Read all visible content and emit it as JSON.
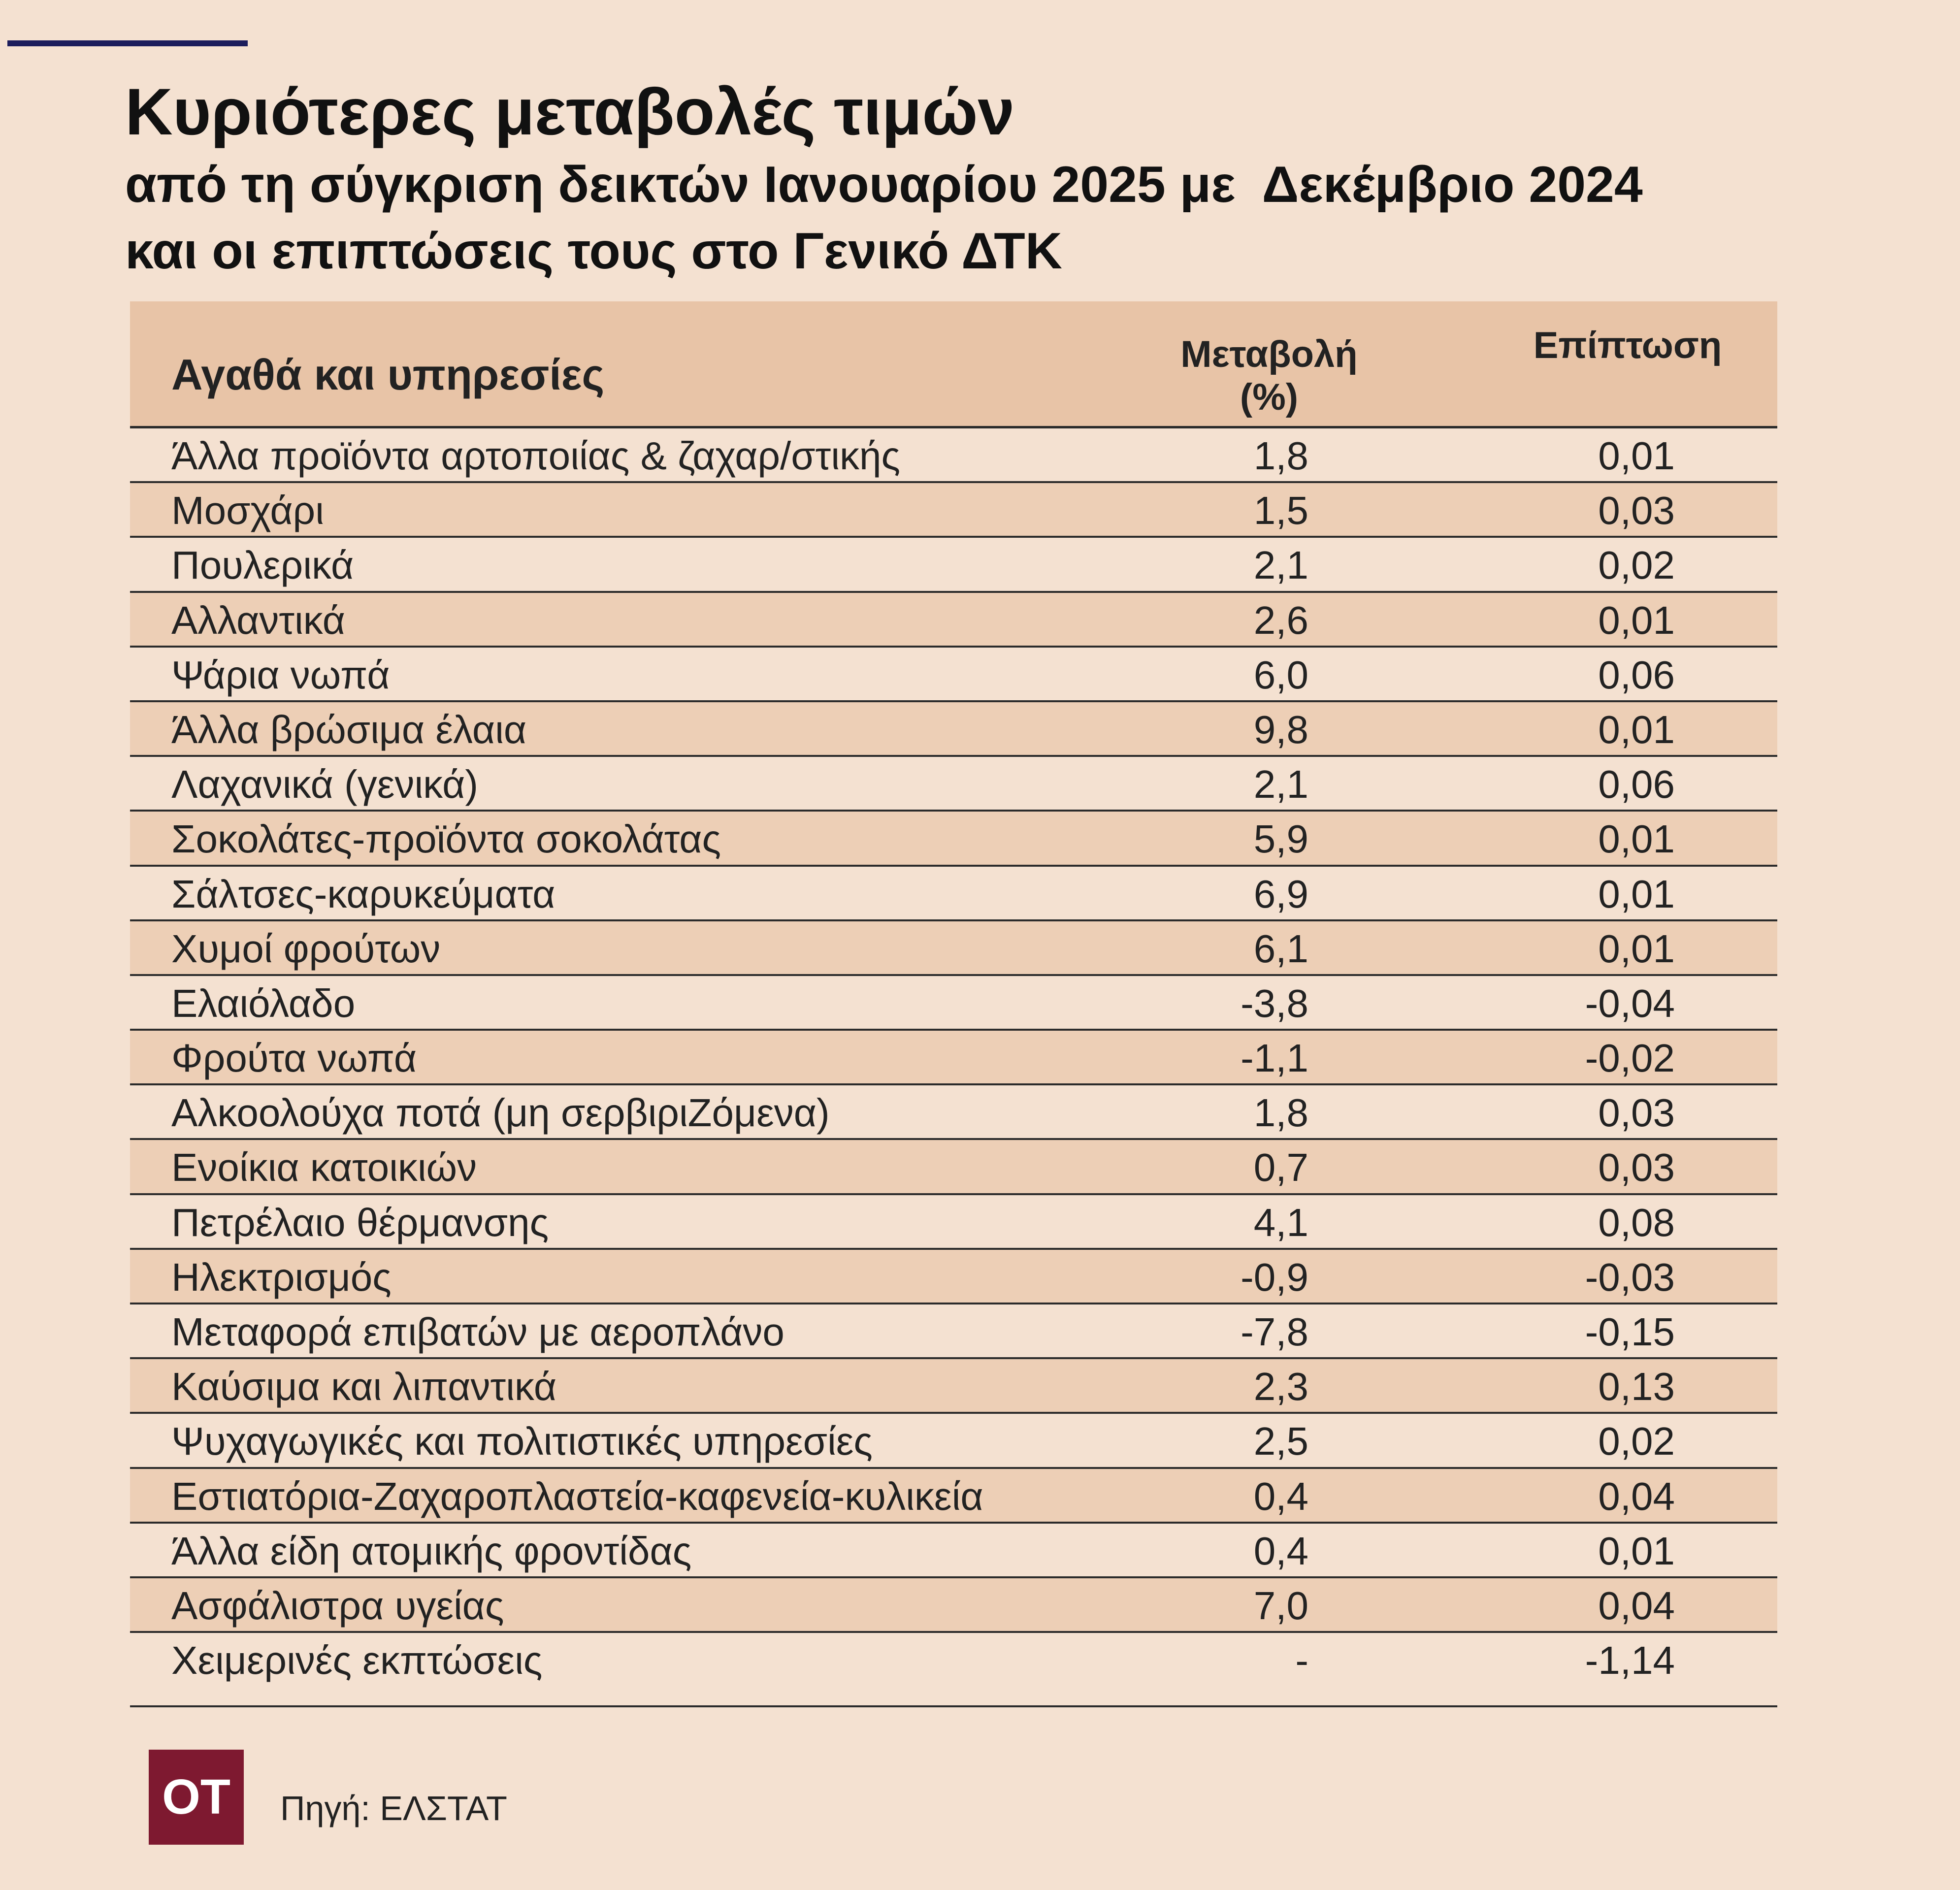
{
  "colors": {
    "background": "#f4e1d1",
    "header_band": "#e8c4a7",
    "row_shade": "#edcfb6",
    "accent_line": "#1c1d5c",
    "logo_box": "#7e1930"
  },
  "chart_data": {
    "type": "table",
    "title": "Κυριότερες μεταβολές τιμών",
    "subtitle": "από τη σύγκριση δεικτών Ιανουαρίου 2025 με  Δεκέμβριο 2024\nκαι οι επιπτώσεις τους στο Γενικό ΔΤΚ",
    "columns": [
      "Αγαθά και υπηρεσίες",
      "Μεταβολή\n(%)",
      "Επίπτωση"
    ],
    "rows": [
      {
        "item": "Άλλα προϊόντα αρτοποιίας & ζαχαρ/στικής",
        "change": "1,8",
        "impact": "0,01"
      },
      {
        "item": "Μοσχάρι",
        "change": "1,5",
        "impact": "0,03"
      },
      {
        "item": "Πουλερικά",
        "change": "2,1",
        "impact": "0,02"
      },
      {
        "item": "Αλλαντικά",
        "change": "2,6",
        "impact": "0,01"
      },
      {
        "item": "Ψάρια νωπά",
        "change": "6,0",
        "impact": "0,06"
      },
      {
        "item": "Άλλα βρώσιμα έλαια",
        "change": "9,8",
        "impact": "0,01"
      },
      {
        "item": "Λαχανικά (γενικά)",
        "change": "2,1",
        "impact": "0,06"
      },
      {
        "item": "Σοκολάτες-προϊόντα σοκολάτας",
        "change": "5,9",
        "impact": "0,01"
      },
      {
        "item": "Σάλτσες-καρυκεύματα",
        "change": "6,9",
        "impact": "0,01"
      },
      {
        "item": "Χυμοί φρούτων",
        "change": "6,1",
        "impact": "0,01"
      },
      {
        "item": "Ελαιόλαδο",
        "change": "-3,8",
        "impact": "-0,04"
      },
      {
        "item": "Φρούτα νωπά",
        "change": "-1,1",
        "impact": "-0,02"
      },
      {
        "item": "Αλκοολούχα ποτά (μη σερβιριΖόμενα)",
        "change": "1,8",
        "impact": "0,03"
      },
      {
        "item": "Ενοίκια κατοικιών",
        "change": "0,7",
        "impact": "0,03"
      },
      {
        "item": "Πετρέλαιο θέρμανσης",
        "change": "4,1",
        "impact": "0,08"
      },
      {
        "item": "Ηλεκτρισμός",
        "change": "-0,9",
        "impact": "-0,03"
      },
      {
        "item": "Μεταφορά επιβατών με αεροπλάνο",
        "change": "-7,8",
        "impact": "-0,15"
      },
      {
        "item": "Καύσιμα και λιπαντικά",
        "change": "2,3",
        "impact": "0,13"
      },
      {
        "item": "Ψυχαγωγικές και πολιτιστικές υπηρεσίες",
        "change": "2,5",
        "impact": "0,02"
      },
      {
        "item": "Εστιατόρια-Ζαχαροπλαστεία-καφενεία-κυλικεία",
        "change": "0,4",
        "impact": "0,04"
      },
      {
        "item": "Άλλα είδη ατομικής φροντίδας",
        "change": "0,4",
        "impact": "0,01"
      },
      {
        "item": "Ασφάλιστρα υγείας",
        "change": "7,0",
        "impact": "0,04"
      },
      {
        "item": "Χειμερινές εκπτώσεις",
        "change": "-",
        "impact": "-1,14"
      }
    ]
  },
  "footer": {
    "logo": "OT",
    "source": "Πηγή: ΕΛΣΤΑΤ"
  }
}
